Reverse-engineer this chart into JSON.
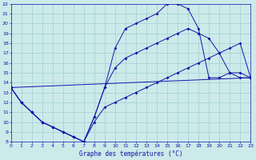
{
  "title": "Graphe des températures (°C)",
  "bg_color": "#cceaea",
  "grid_color": "#9fcfcf",
  "line_color": "#1414aa",
  "xlim": [
    0,
    23
  ],
  "ylim": [
    8,
    22
  ],
  "xticks": [
    0,
    1,
    2,
    3,
    4,
    5,
    6,
    7,
    8,
    9,
    10,
    11,
    12,
    13,
    14,
    15,
    16,
    17,
    18,
    19,
    20,
    21,
    22,
    23
  ],
  "yticks": [
    8,
    9,
    10,
    11,
    12,
    13,
    14,
    15,
    16,
    17,
    18,
    19,
    20,
    21,
    22
  ],
  "line1_x": [
    0,
    1,
    2,
    3,
    4,
    5,
    6,
    7,
    8,
    9,
    10,
    11,
    12,
    13,
    14,
    15,
    16,
    17,
    18,
    19,
    20,
    21,
    22,
    23
  ],
  "line1_y": [
    13.5,
    12.0,
    11.0,
    10.0,
    9.5,
    9.0,
    8.5,
    8.0,
    10.5,
    13.5,
    17.5,
    19.5,
    20.0,
    20.5,
    21.0,
    22.0,
    22.0,
    21.5,
    19.5,
    14.5,
    14.5,
    15.0,
    14.5,
    14.5
  ],
  "line2_x": [
    0,
    1,
    2,
    3,
    4,
    5,
    6,
    7,
    8,
    9,
    10,
    11,
    12,
    13,
    14,
    15,
    16,
    17,
    18,
    19,
    20,
    21,
    22,
    23
  ],
  "line2_y": [
    13.5,
    12.0,
    11.0,
    10.0,
    9.5,
    9.0,
    8.5,
    8.0,
    10.5,
    13.5,
    15.5,
    16.5,
    17.0,
    17.5,
    18.0,
    18.5,
    19.0,
    19.5,
    19.0,
    18.5,
    17.0,
    15.0,
    15.0,
    14.5
  ],
  "line3_x": [
    0,
    23
  ],
  "line3_y": [
    13.5,
    14.5
  ],
  "line4_x": [
    0,
    1,
    2,
    3,
    4,
    5,
    6,
    7,
    8,
    9,
    10,
    11,
    12,
    13,
    14,
    15,
    16,
    17,
    18,
    19,
    20,
    21,
    22,
    23
  ],
  "line4_y": [
    13.5,
    12.0,
    11.0,
    10.0,
    9.5,
    9.0,
    8.5,
    8.0,
    10.0,
    11.5,
    12.0,
    12.5,
    13.0,
    13.5,
    14.0,
    14.5,
    15.0,
    15.5,
    16.0,
    16.5,
    17.0,
    17.5,
    18.0,
    14.5
  ],
  "xlabel_fontsize": 5.5,
  "tick_fontsize": 4.5,
  "linewidth": 0.7,
  "markersize": 2.0
}
